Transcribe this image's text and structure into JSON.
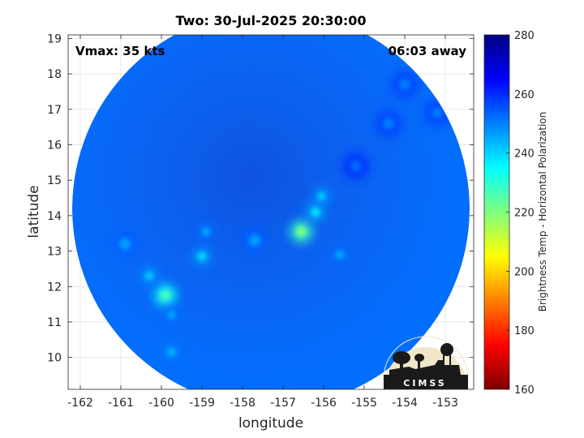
{
  "chart_data": {
    "type": "heatmap",
    "title": "Two: 30-Jul-2025 20:30:00",
    "xlabel": "longitude",
    "ylabel": "latitude",
    "xlim": [
      -162.3,
      -152.3
    ],
    "ylim": [
      9.1,
      19.1
    ],
    "x_ticks": [
      -162,
      -161,
      -160,
      -159,
      -158,
      -157,
      -156,
      -155,
      -154,
      -153
    ],
    "y_ticks": [
      10,
      11,
      12,
      13,
      14,
      15,
      16,
      17,
      18,
      19
    ],
    "grid": true,
    "annotations": {
      "top_left": "Vmax: 35 kts",
      "top_right": "06:03 away"
    },
    "swath": {
      "center_lon": -157.3,
      "center_lat": 14.2,
      "radius_deg": 4.9
    },
    "background_value": 262,
    "features": [
      {
        "lon": -156.55,
        "lat": 13.55,
        "value": 220
      },
      {
        "lon": -156.2,
        "lat": 14.1,
        "value": 236
      },
      {
        "lon": -156.05,
        "lat": 14.55,
        "value": 240
      },
      {
        "lon": -159.9,
        "lat": 11.75,
        "value": 226
      },
      {
        "lon": -160.3,
        "lat": 12.3,
        "value": 240
      },
      {
        "lon": -159.75,
        "lat": 11.2,
        "value": 244
      },
      {
        "lon": -159.75,
        "lat": 10.15,
        "value": 242
      },
      {
        "lon": -159.0,
        "lat": 12.85,
        "value": 238
      },
      {
        "lon": -158.9,
        "lat": 13.55,
        "value": 244
      },
      {
        "lon": -155.6,
        "lat": 12.9,
        "value": 244
      },
      {
        "lon": -160.9,
        "lat": 13.2,
        "value": 246
      },
      {
        "lon": -157.7,
        "lat": 13.3,
        "value": 246
      },
      {
        "lon": -154.4,
        "lat": 16.6,
        "value": 250
      },
      {
        "lon": -153.2,
        "lat": 16.9,
        "value": 250
      },
      {
        "lon": -155.2,
        "lat": 15.4,
        "value": 252
      },
      {
        "lon": -154.0,
        "lat": 17.7,
        "value": 250
      }
    ],
    "colorbar": {
      "label": "Brightness Temp - Horizontal Polarization",
      "range": [
        160,
        280
      ],
      "ticks": [
        160,
        180,
        200,
        220,
        240,
        260,
        280
      ]
    }
  },
  "logo": {
    "text": "CIMSS"
  },
  "colors": {
    "swath_base": "#2a6be8",
    "swath_dark": "#1c3cc8",
    "axis": "#262626",
    "grid": "#d9d9d9"
  }
}
